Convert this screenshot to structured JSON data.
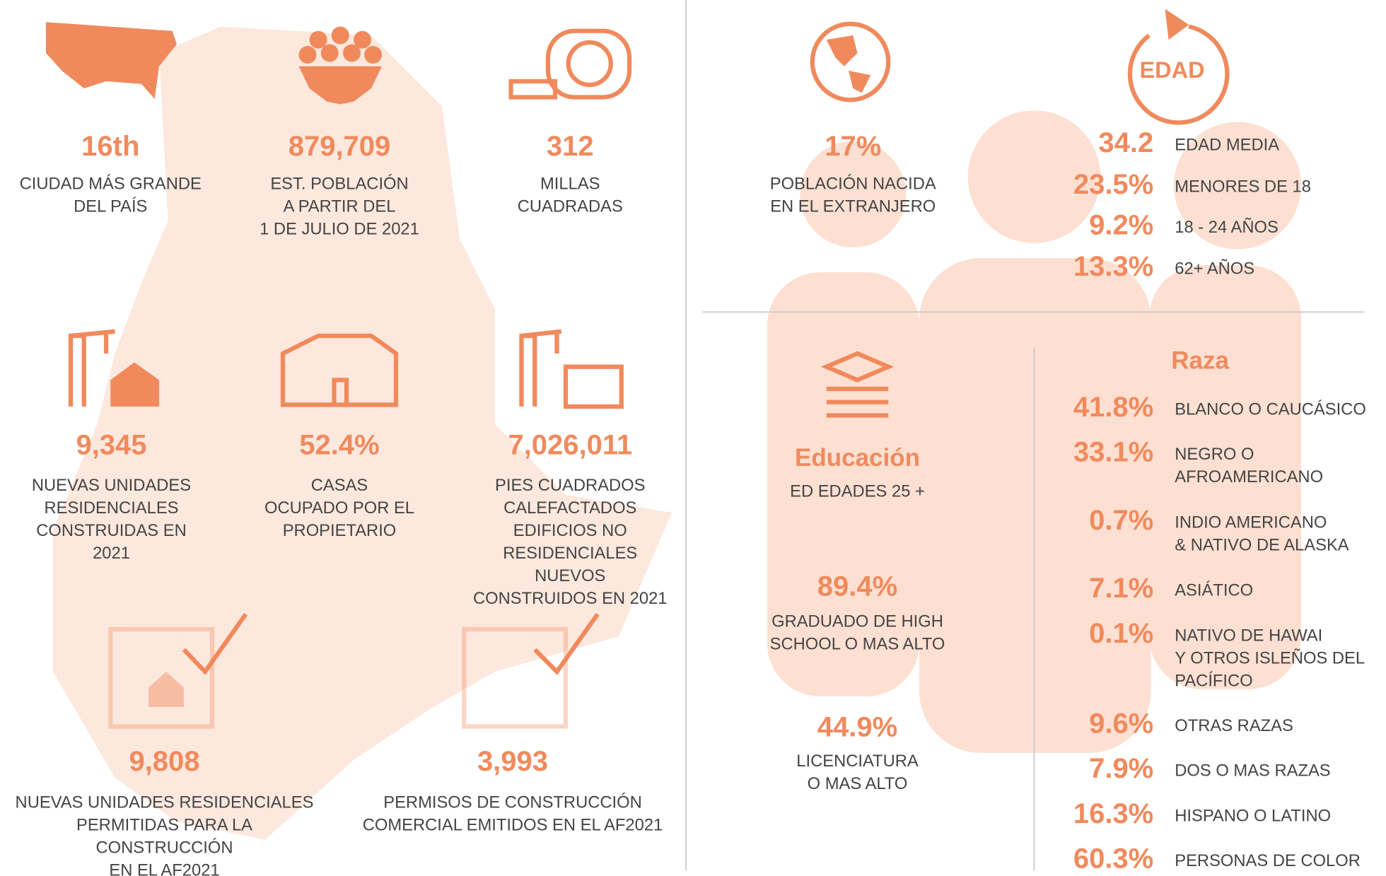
{
  "left_stats": [
    {
      "value": "16th",
      "label": [
        "CIUDAD MÁS GRANDE",
        "DEL PAÍS"
      ]
    },
    {
      "value": "879,709",
      "label": [
        "EST. POBLACIÓN",
        "A PARTIR DEL",
        "1 DE JULIO DE 2021"
      ]
    },
    {
      "value": "312",
      "label": [
        "MILLAS",
        "CUADRADAS"
      ]
    },
    {
      "value": "9,345",
      "label": [
        "NUEVAS UNIDADES",
        "RESIDENCIALES",
        "CONSTRUIDAS EN",
        "2021"
      ]
    },
    {
      "value": "52.4%",
      "label": [
        "CASAS",
        "OCUPADO POR EL",
        "PROPIETARIO"
      ]
    },
    {
      "value": "7,026,011",
      "label": [
        "PIES CUADRADOS",
        "CALEFACTADOS",
        "EDIFICIOS NO",
        "RESIDENCIALES",
        "NUEVOS",
        "CONSTRUIDOS EN 2021"
      ]
    },
    {
      "value": "9,808",
      "label": [
        "NUEVAS UNIDADES RESIDENCIALES",
        "PERMITIDAS PARA LA",
        "CONSTRUCCIÓN",
        "EN EL AF2021"
      ]
    },
    {
      "value": "3,993",
      "label": [
        "PERMISOS DE CONSTRUCCIÓN",
        "COMERCIAL EMITIDOS EN EL AF2021"
      ]
    }
  ],
  "foreign_born": {
    "value": "17%",
    "label": [
      "POBLACIÓN NACIDA",
      "EN EL EXTRANJERO"
    ]
  },
  "edad": {
    "icon_label": "EDAD",
    "rows": [
      {
        "value": "34.2",
        "label": [
          "EDAD MEDIA"
        ]
      },
      {
        "value": "23.5%",
        "label": [
          "MENORES DE 18"
        ]
      },
      {
        "value": "9.2%",
        "label": [
          "18 - 24 AÑOS"
        ]
      },
      {
        "value": "13.3%",
        "label": [
          "62+ AÑOS"
        ]
      }
    ]
  },
  "educacion": {
    "title": "Educación",
    "subtitle": "ED EDADES 25 +",
    "stats": [
      {
        "value": "89.4%",
        "label": [
          "GRADUADO DE HIGH",
          "SCHOOL O MAS ALTO"
        ]
      },
      {
        "value": "44.9%",
        "label": [
          "LICENCIATURA",
          "O MAS ALTO"
        ]
      }
    ]
  },
  "raza": {
    "title": "Raza",
    "rows": [
      {
        "value": "41.8%",
        "label": [
          "BLANCO O CAUCÁSICO"
        ]
      },
      {
        "value": "33.1%",
        "label": [
          "NEGRO O",
          "AFROAMERICANO"
        ]
      },
      {
        "value": "0.7%",
        "label": [
          "INDIO AMERICANO",
          "& NATIVO DE ALASKA"
        ]
      },
      {
        "value": "7.1%",
        "label": [
          "ASIÁTICO"
        ]
      },
      {
        "value": "0.1%",
        "label": [
          "NATIVO DE HAWAI",
          "Y OTROS ISLEÑOS DEL",
          "PACÍFICO"
        ]
      },
      {
        "value": "9.6%",
        "label": [
          "OTRAS RAZAS"
        ]
      },
      {
        "value": "7.9%",
        "label": [
          "DOS O MAS RAZAS"
        ]
      },
      {
        "value": "16.3%",
        "label": [
          "HISPANO O LATINO"
        ]
      },
      {
        "value": "60.3%",
        "label": [
          "PERSONAS DE COLOR"
        ]
      }
    ]
  }
}
